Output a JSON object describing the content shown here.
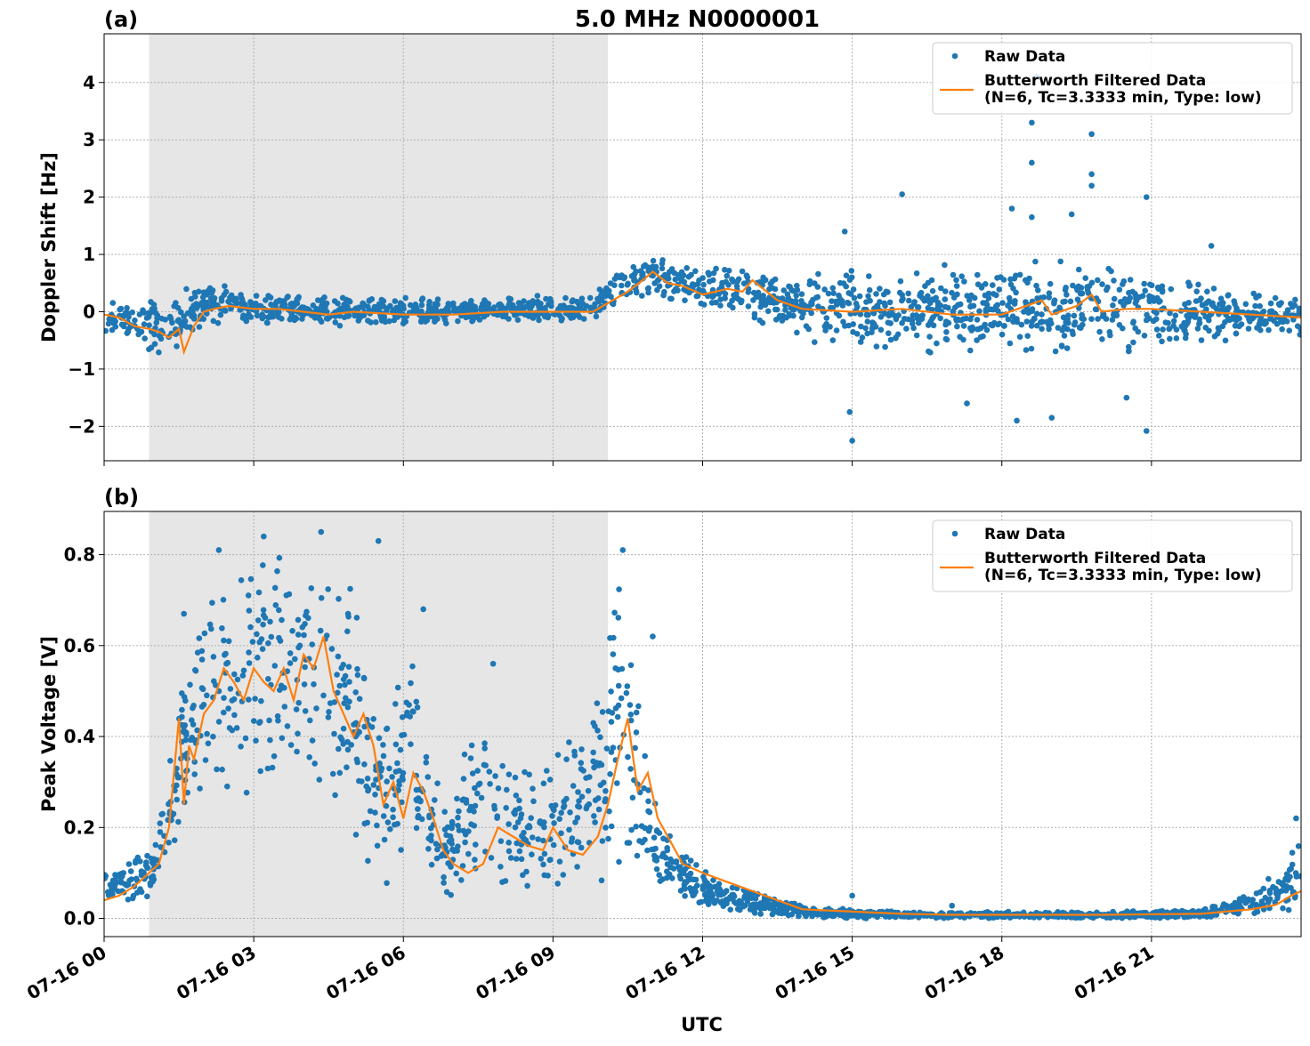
{
  "chart_data": [
    {
      "type": "scatter",
      "panel_label": "(a)",
      "title": "5.0 MHz N0000001",
      "xlabel": "",
      "ylabel": "Doppler Shift [Hz]",
      "x_unit": "hours UTC on 07-16",
      "xlim": [
        0,
        24
      ],
      "ylim": [
        -2.6,
        4.85
      ],
      "yticks": [
        -2,
        -1,
        0,
        1,
        2,
        3,
        4
      ],
      "ytick_labels": [
        "−2",
        "−1",
        "0",
        "1",
        "2",
        "3",
        "4"
      ],
      "grid": true,
      "legend_position": "upper right",
      "shaded_x_range": [
        0.9,
        10.1
      ],
      "series": [
        {
          "name": "Raw Data",
          "kind": "scatter",
          "color": "#1f77b4",
          "envelope": {
            "x": [
              0,
              0.5,
              1.0,
              1.3,
              1.6,
              2.0,
              2.5,
              3.0,
              4.0,
              5.0,
              6.0,
              7.0,
              8.0,
              9.0,
              9.8,
              10.1,
              10.5,
              11.0,
              11.5,
              12.0,
              12.5,
              13.0,
              13.5,
              14.0,
              15.0,
              16.0,
              17.0,
              18.0,
              19.0,
              20.0,
              21.0,
              22.0,
              23.0,
              24.0
            ],
            "low": [
              -0.4,
              -0.5,
              -0.8,
              -1.0,
              -0.6,
              -0.25,
              -0.2,
              -0.25,
              -0.25,
              -0.25,
              -0.25,
              -0.2,
              -0.2,
              -0.15,
              -0.2,
              0.0,
              0.2,
              0.25,
              0.15,
              0.0,
              0.0,
              -0.15,
              -0.3,
              -0.45,
              -0.8,
              -0.8,
              -0.8,
              -0.9,
              -0.85,
              -0.8,
              -0.75,
              -0.6,
              -0.5,
              -0.45
            ],
            "high": [
              0.2,
              0.2,
              0.3,
              0.15,
              0.4,
              0.55,
              0.5,
              0.35,
              0.3,
              0.3,
              0.25,
              0.25,
              0.25,
              0.3,
              0.25,
              0.65,
              0.8,
              1.0,
              0.9,
              0.8,
              0.85,
              0.8,
              0.6,
              0.65,
              0.85,
              0.8,
              0.85,
              0.9,
              0.9,
              0.9,
              0.85,
              0.6,
              0.4,
              0.3
            ]
          },
          "outliers": [
            {
              "x": 15.0,
              "y": -2.25
            },
            {
              "x": 14.95,
              "y": -1.75
            },
            {
              "x": 14.85,
              "y": 1.4
            },
            {
              "x": 16.0,
              "y": 2.05
            },
            {
              "x": 18.2,
              "y": 1.8
            },
            {
              "x": 18.3,
              "y": -1.9
            },
            {
              "x": 18.6,
              "y": 1.65
            },
            {
              "x": 18.6,
              "y": 3.3
            },
            {
              "x": 18.6,
              "y": 2.6
            },
            {
              "x": 18.7,
              "y": 4.1
            },
            {
              "x": 19.4,
              "y": 1.7
            },
            {
              "x": 19.8,
              "y": 3.1
            },
            {
              "x": 19.8,
              "y": 2.4
            },
            {
              "x": 19.8,
              "y": 2.2
            },
            {
              "x": 20.5,
              "y": -1.5
            },
            {
              "x": 20.9,
              "y": 2.0
            },
            {
              "x": 20.9,
              "y": -2.08
            },
            {
              "x": 22.2,
              "y": 1.15
            },
            {
              "x": 19.0,
              "y": -1.85
            },
            {
              "x": 17.3,
              "y": -1.6
            }
          ]
        },
        {
          "name": "Butterworth Filtered Data\n(N=6, Tc=3.3333 min, Type: low)",
          "kind": "line",
          "color": "#ff7f0e",
          "x": [
            0,
            0.3,
            0.6,
            0.9,
            1.1,
            1.3,
            1.5,
            1.6,
            1.8,
            2.0,
            2.2,
            2.5,
            3.0,
            3.5,
            4.0,
            4.5,
            5.0,
            6.0,
            7.0,
            8.0,
            9.0,
            9.8,
            10.2,
            10.5,
            10.8,
            11.0,
            11.3,
            11.6,
            12.0,
            12.5,
            12.8,
            13.0,
            13.5,
            14.0,
            15.0,
            16.0,
            17.0,
            18.0,
            18.8,
            19.0,
            19.5,
            19.8,
            20.0,
            20.5,
            21.0,
            22.0,
            23.0,
            24.0
          ],
          "y": [
            -0.05,
            -0.1,
            -0.25,
            -0.3,
            -0.35,
            -0.45,
            -0.3,
            -0.7,
            -0.25,
            0.0,
            0.05,
            0.1,
            0.05,
            0.05,
            0.0,
            -0.05,
            0.0,
            -0.05,
            -0.05,
            0.0,
            0.0,
            0.0,
            0.2,
            0.35,
            0.55,
            0.7,
            0.5,
            0.45,
            0.3,
            0.4,
            0.35,
            0.55,
            0.2,
            0.05,
            0.0,
            0.05,
            -0.05,
            -0.05,
            0.2,
            -0.05,
            0.1,
            0.3,
            0.0,
            0.05,
            0.05,
            0.0,
            -0.05,
            -0.1
          ]
        }
      ]
    },
    {
      "type": "scatter",
      "panel_label": "(b)",
      "title": "",
      "xlabel": "UTC",
      "ylabel": "Peak Voltage [V]",
      "x_unit": "hours UTC on 07-16",
      "xlim": [
        0,
        24
      ],
      "ylim": [
        -0.04,
        0.895
      ],
      "yticks": [
        0.0,
        0.2,
        0.4,
        0.6,
        0.8
      ],
      "ytick_labels": [
        "0.0",
        "0.2",
        "0.4",
        "0.6",
        "0.8"
      ],
      "xticks": [
        0,
        3,
        6,
        9,
        12,
        15,
        18,
        21
      ],
      "xtick_labels": [
        "07-16 00",
        "07-16 03",
        "07-16 06",
        "07-16 09",
        "07-16 12",
        "07-16 15",
        "07-16 18",
        "07-16 21"
      ],
      "grid": true,
      "legend_position": "upper right",
      "shaded_x_range": [
        0.9,
        10.1
      ],
      "series": [
        {
          "name": "Raw Data",
          "kind": "scatter",
          "color": "#1f77b4",
          "envelope": {
            "x": [
              0,
              0.5,
              1.0,
              1.2,
              1.5,
              1.8,
              2.0,
              2.5,
              3.0,
              3.5,
              4.0,
              4.5,
              5.0,
              5.3,
              5.6,
              6.0,
              6.3,
              6.6,
              7.0,
              7.3,
              7.6,
              8.0,
              8.5,
              9.0,
              9.5,
              10.0,
              10.3,
              10.5,
              10.8,
              11.0,
              11.3,
              11.6,
              12.0,
              12.5,
              13.0,
              14.0,
              15.0,
              16.0,
              18.0,
              20.0,
              22.0,
              23.0,
              23.5,
              24.0
            ],
            "low": [
              0.01,
              0.03,
              0.05,
              0.08,
              0.15,
              0.22,
              0.25,
              0.25,
              0.25,
              0.3,
              0.3,
              0.25,
              0.15,
              0.08,
              0.05,
              0.07,
              0.05,
              0.04,
              0.03,
              0.05,
              0.06,
              0.05,
              0.04,
              0.04,
              0.05,
              0.08,
              0.12,
              0.12,
              0.08,
              0.05,
              0.04,
              0.03,
              0.02,
              0.01,
              0.005,
              0.0,
              0.0,
              0.0,
              0.0,
              0.0,
              0.0,
              0.005,
              0.01,
              0.02
            ],
            "high": [
              0.1,
              0.13,
              0.18,
              0.3,
              0.5,
              0.62,
              0.75,
              0.8,
              0.82,
              0.8,
              0.82,
              0.8,
              0.78,
              0.55,
              0.45,
              0.65,
              0.58,
              0.32,
              0.25,
              0.42,
              0.52,
              0.38,
              0.35,
              0.38,
              0.48,
              0.6,
              0.78,
              0.62,
              0.45,
              0.3,
              0.22,
              0.15,
              0.12,
              0.08,
              0.06,
              0.03,
              0.02,
              0.015,
              0.015,
              0.015,
              0.02,
              0.06,
              0.1,
              0.2
            ]
          },
          "outliers": [
            {
              "x": 10.4,
              "y": 0.81
            },
            {
              "x": 4.35,
              "y": 0.85
            },
            {
              "x": 3.2,
              "y": 0.84
            },
            {
              "x": 2.3,
              "y": 0.81
            },
            {
              "x": 5.5,
              "y": 0.83
            },
            {
              "x": 6.4,
              "y": 0.68
            },
            {
              "x": 7.8,
              "y": 0.56
            },
            {
              "x": 11.0,
              "y": 0.62
            },
            {
              "x": 1.6,
              "y": 0.67
            },
            {
              "x": 23.9,
              "y": 0.22
            },
            {
              "x": 15.0,
              "y": 0.05
            },
            {
              "x": 17.0,
              "y": 0.028
            }
          ]
        },
        {
          "name": "Butterworth Filtered Data\n(N=6, Tc=3.3333 min, Type: low)",
          "kind": "line",
          "color": "#ff7f0e",
          "x": [
            0,
            0.3,
            0.6,
            0.9,
            1.1,
            1.3,
            1.5,
            1.6,
            1.7,
            1.8,
            2.0,
            2.2,
            2.4,
            2.6,
            2.8,
            3.0,
            3.2,
            3.4,
            3.6,
            3.8,
            4.0,
            4.2,
            4.4,
            4.6,
            4.8,
            5.0,
            5.2,
            5.4,
            5.6,
            5.8,
            6.0,
            6.2,
            6.4,
            6.6,
            6.8,
            7.0,
            7.3,
            7.6,
            7.9,
            8.2,
            8.5,
            8.8,
            9.0,
            9.3,
            9.6,
            9.9,
            10.1,
            10.3,
            10.5,
            10.7,
            10.9,
            11.1,
            11.3,
            11.6,
            12.0,
            12.5,
            13.0,
            13.5,
            14.0,
            15.0,
            16.0,
            17.0,
            18.0,
            20.0,
            22.0,
            23.0,
            23.5,
            23.8,
            24.0
          ],
          "y": [
            0.04,
            0.05,
            0.07,
            0.1,
            0.12,
            0.2,
            0.44,
            0.25,
            0.38,
            0.35,
            0.45,
            0.48,
            0.55,
            0.52,
            0.48,
            0.55,
            0.52,
            0.5,
            0.55,
            0.48,
            0.58,
            0.55,
            0.62,
            0.5,
            0.45,
            0.4,
            0.45,
            0.38,
            0.25,
            0.3,
            0.22,
            0.32,
            0.28,
            0.22,
            0.15,
            0.12,
            0.1,
            0.12,
            0.2,
            0.18,
            0.16,
            0.15,
            0.2,
            0.15,
            0.14,
            0.18,
            0.25,
            0.35,
            0.44,
            0.28,
            0.32,
            0.22,
            0.18,
            0.12,
            0.1,
            0.08,
            0.06,
            0.04,
            0.02,
            0.015,
            0.01,
            0.008,
            0.008,
            0.008,
            0.01,
            0.02,
            0.03,
            0.05,
            0.06
          ]
        }
      ]
    }
  ]
}
